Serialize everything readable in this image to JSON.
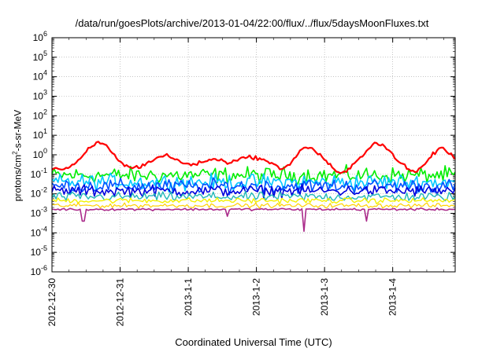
{
  "chart_data": {
    "type": "line",
    "title": "/data/run/goesPlots/archive/2013-01-04/22:00/flux/../flux/5daysMoonFluxes.txt",
    "xlabel": "Coordinated Universal Time (UTC)",
    "ylabel": {
      "base": "protons/cm",
      "sup": "2",
      "rest": "-s-sr-MeV"
    },
    "y_scale": "log",
    "ylim": [
      1e-06,
      1000000.0
    ],
    "yticks": [
      {
        "base": "10",
        "exp": "-6"
      },
      {
        "base": "10",
        "exp": "-5"
      },
      {
        "base": "10",
        "exp": "-4"
      },
      {
        "base": "10",
        "exp": "-3"
      },
      {
        "base": "10",
        "exp": "-2"
      },
      {
        "base": "10",
        "exp": "-1"
      },
      {
        "base": "10",
        "exp": "0"
      },
      {
        "base": "10",
        "exp": "1"
      },
      {
        "base": "10",
        "exp": "2"
      },
      {
        "base": "10",
        "exp": "3"
      },
      {
        "base": "10",
        "exp": "4"
      },
      {
        "base": "10",
        "exp": "5"
      },
      {
        "base": "10",
        "exp": "6"
      }
    ],
    "xlim": [
      "2012-12-30 00:00",
      "2013-01-04 22:00"
    ],
    "xticks": [
      "2012-12-30",
      "2012-12-31",
      "2013-1-1",
      "2013-1-2",
      "2013-1-3",
      "2013-1-4"
    ],
    "grid": true,
    "legend": "none",
    "series": [
      {
        "color": "#ff0000",
        "width": 2.2,
        "noise": 0.08,
        "x": [
          "2012-12-30 00:00",
          "2012-12-30 04:00",
          "2012-12-30 07:00",
          "2012-12-30 10:00",
          "2012-12-30 13:00",
          "2012-12-30 16:00",
          "2012-12-30 19:00",
          "2012-12-30 22:00",
          "2012-12-31 01:00",
          "2012-12-31 04:00",
          "2012-12-31 07:00",
          "2012-12-31 10:00",
          "2012-12-31 13:00",
          "2012-12-31 16:00",
          "2012-12-31 19:00",
          "2012-12-31 22:00",
          "2013-01-01 02:00",
          "2013-01-01 06:00",
          "2013-01-01 10:00",
          "2013-01-01 14:00",
          "2013-01-01 18:00",
          "2013-01-01 22:00",
          "2013-01-02 02:00",
          "2013-01-02 06:00",
          "2013-01-02 09:00",
          "2013-01-02 12:00",
          "2013-01-02 14:00",
          "2013-01-02 17:00",
          "2013-01-02 20:00",
          "2013-01-02 23:00",
          "2013-01-03 02:00",
          "2013-01-03 05:00",
          "2013-01-03 08:00",
          "2013-01-03 11:00",
          "2013-01-03 14:00",
          "2013-01-03 17:00",
          "2013-01-03 20:00",
          "2013-01-03 23:00",
          "2013-01-04 02:00",
          "2013-01-04 05:00",
          "2013-01-04 08:00",
          "2013-01-04 11:00",
          "2013-01-04 14:00",
          "2013-01-04 17:00",
          "2013-01-04 20:00",
          "2013-01-04 22:00"
        ],
        "y": [
          0.2,
          0.18,
          0.25,
          0.6,
          2.0,
          4.5,
          3.0,
          1.0,
          0.3,
          0.22,
          0.25,
          0.4,
          0.7,
          1.0,
          0.6,
          0.4,
          0.3,
          0.5,
          0.6,
          0.4,
          0.6,
          0.8,
          0.6,
          0.3,
          0.2,
          0.35,
          0.9,
          2.5,
          2.0,
          0.8,
          0.3,
          0.1,
          0.15,
          0.4,
          1.2,
          4.0,
          3.5,
          1.5,
          0.5,
          0.2,
          0.12,
          0.3,
          1.0,
          2.5,
          1.2,
          0.6
        ]
      },
      {
        "color": "#00ee00",
        "width": 1.6,
        "base": 0.09,
        "noise": 0.35
      },
      {
        "color": "#00c8ff",
        "width": 1.6,
        "base": 0.04,
        "noise": 0.35
      },
      {
        "color": "#0050ff",
        "width": 1.6,
        "base": 0.025,
        "noise": 0.3
      },
      {
        "color": "#0000dd",
        "width": 1.6,
        "base": 0.014,
        "noise": 0.25
      },
      {
        "color": "#22b8b8",
        "width": 1.4,
        "base": 0.007,
        "noise": 0.2
      },
      {
        "color": "#f2f200",
        "width": 1.4,
        "base": 0.0045,
        "noise": 0.12
      },
      {
        "color": "#ffd000",
        "width": 1.2,
        "base": 0.0025,
        "noise": 0.1
      },
      {
        "color": "#aa2a8a",
        "width": 1.6,
        "base": 0.0016,
        "noise": 0.05,
        "dips": [
          {
            "x": "2012-12-30 11:00",
            "y": 0.0004
          },
          {
            "x": "2013-01-01 14:00",
            "y": 0.0007
          },
          {
            "x": "2013-01-02 17:00",
            "y": 0.00012
          },
          {
            "x": "2013-01-03 15:00",
            "y": 0.0004
          }
        ]
      }
    ]
  }
}
